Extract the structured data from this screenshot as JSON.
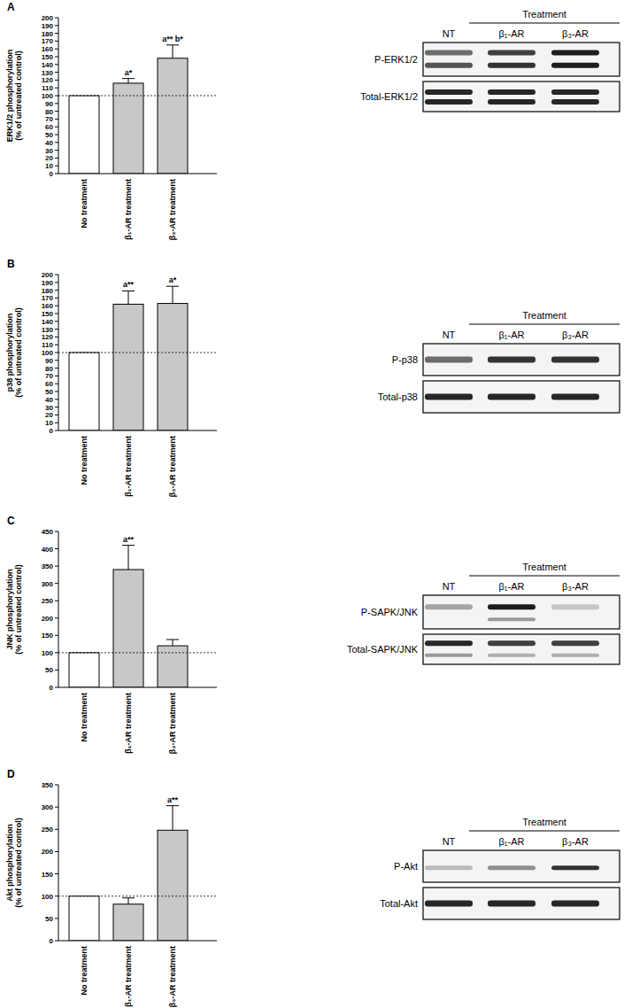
{
  "chart_data": [
    {
      "type": "bar",
      "title": "A",
      "y_label": [
        "ERK1/2 phosphorylation",
        "(% of untreated control)"
      ],
      "categories": [
        "No treatment",
        "β₁-AR treatment",
        "β₃-AR treatment"
      ],
      "values": [
        100,
        116,
        148
      ],
      "errors": [
        null,
        6,
        17
      ],
      "annotations": [
        null,
        "a*",
        "a** b*"
      ],
      "colors": [
        "#ffffff",
        "#c8c8c8",
        "#c8c8c8"
      ],
      "reference_line": 100,
      "ylim": [
        0,
        200
      ],
      "yticks": [
        0,
        10,
        20,
        30,
        40,
        50,
        60,
        70,
        80,
        90,
        100,
        110,
        120,
        130,
        140,
        150,
        160,
        170,
        180,
        190,
        200
      ]
    },
    {
      "type": "bar",
      "title": "B",
      "y_label": [
        "p38 phosphorylation",
        "(% of untreated control)"
      ],
      "categories": [
        "No treatment",
        "β₁-AR treatment",
        "β₃-AR treatment"
      ],
      "values": [
        100,
        162,
        163
      ],
      "errors": [
        null,
        17,
        22
      ],
      "annotations": [
        null,
        "a**",
        "a*"
      ],
      "colors": [
        "#ffffff",
        "#c8c8c8",
        "#c8c8c8"
      ],
      "reference_line": 100,
      "ylim": [
        0,
        200
      ],
      "yticks": [
        0,
        10,
        20,
        30,
        40,
        50,
        60,
        70,
        80,
        90,
        100,
        110,
        120,
        130,
        140,
        150,
        160,
        170,
        180,
        190,
        200
      ]
    },
    {
      "type": "bar",
      "title": "C",
      "y_label": [
        "JNK phosphorylation",
        "(% of untreated control)"
      ],
      "categories": [
        "No treatment",
        "β₁-AR treatment",
        "β₃-AR treatment"
      ],
      "values": [
        100,
        340,
        120
      ],
      "errors": [
        null,
        70,
        18
      ],
      "annotations": [
        null,
        "a**",
        null
      ],
      "colors": [
        "#ffffff",
        "#c8c8c8",
        "#c8c8c8"
      ],
      "reference_line": 100,
      "ylim": [
        0,
        450
      ],
      "yticks": [
        0,
        50,
        100,
        150,
        200,
        250,
        300,
        350,
        400,
        450
      ]
    },
    {
      "type": "bar",
      "title": "D",
      "y_label": [
        "Akt phosphorylation",
        "(% of untreated control)"
      ],
      "categories": [
        "No treatment",
        "β₁-AR treatment",
        "β₃-AR treatment"
      ],
      "values": [
        100,
        82,
        248
      ],
      "errors": [
        null,
        14,
        55
      ],
      "annotations": [
        null,
        null,
        "a**"
      ],
      "colors": [
        "#ffffff",
        "#c8c8c8",
        "#c8c8c8"
      ],
      "reference_line": 100,
      "ylim": [
        0,
        350
      ],
      "yticks": [
        0,
        50,
        100,
        150,
        200,
        250,
        300,
        350
      ]
    }
  ],
  "blots": [
    {
      "header": "Treatment",
      "lanes": [
        "NT",
        "β₁-AR",
        "β₃-AR"
      ],
      "rows": [
        "P-ERK1/2",
        "Total-ERK1/2"
      ]
    },
    {
      "header": "Treatment",
      "lanes": [
        "NT",
        "β₁-AR",
        "β₃-AR"
      ],
      "rows": [
        "P-p38",
        "Total-p38"
      ]
    },
    {
      "header": "Treatment",
      "lanes": [
        "NT",
        "β₁-AR",
        "β₃-AR"
      ],
      "rows": [
        "P-SAPK/JNK",
        "Total-SAPK/JNK"
      ]
    },
    {
      "header": "Treatment",
      "lanes": [
        "NT",
        "β₁-AR",
        "β₃-AR"
      ],
      "rows": [
        "P-Akt",
        "Total-Akt"
      ]
    }
  ]
}
